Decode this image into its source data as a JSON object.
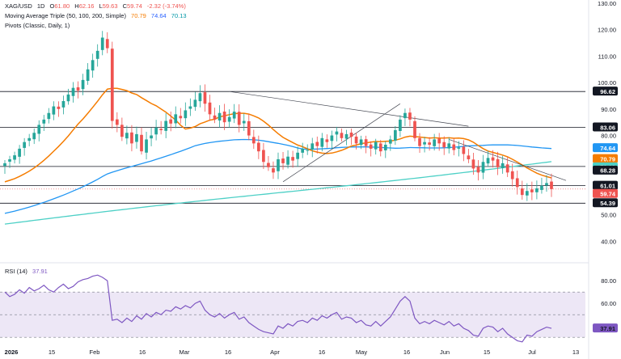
{
  "header": {
    "symbol": "XAG/USD",
    "interval": "1D",
    "ohlc": {
      "o_label": "O",
      "o": "61.80",
      "h_label": "H",
      "h": "62.16",
      "l_label": "L",
      "l": "59.63",
      "c_label": "C",
      "c": "59.74",
      "chg": "-2.32 (-3.74%)"
    },
    "ma_label": "Moving Average Triple (50, 100, 200, Simple)",
    "ma_values": [
      "70.79",
      "74.64",
      "70.13"
    ],
    "pivots_label": "Pivots (Classic, Daily, 1)",
    "rsi_label": "RSI (14)",
    "rsi_value": "37.91"
  },
  "colors": {
    "up": "#26a69a",
    "down": "#ef5350",
    "ma50": "#f57c00",
    "ma100": "#2196f3",
    "ma200": "#4dd0c6",
    "rsi_line": "#7e57c2",
    "rsi_band": "#ede7f6",
    "trendline": "#434651"
  },
  "chart_data": [
    {
      "type": "candlestick",
      "title": "",
      "x_tick_labels": [
        "2026",
        "15",
        "Feb",
        "16",
        "Mar",
        "16",
        "Apr",
        "16",
        "May",
        "16",
        "Jun",
        "15",
        "Jul",
        "13"
      ],
      "y_tick_labels": [
        "40.00",
        "50.00",
        "60.00",
        "70.00",
        "80.00",
        "90.00",
        "100.00",
        "110.00",
        "120.00",
        "130.00"
      ],
      "ylim": [
        34,
        130
      ],
      "grid": false,
      "candles_close": [
        69.5,
        71.0,
        72.5,
        75.0,
        77.5,
        79.0,
        81.0,
        84.0,
        86.0,
        88.5,
        91.0,
        90.0,
        93.0,
        95.5,
        98.0,
        97.0,
        101.0,
        105.0,
        108.5,
        112.0,
        117.0,
        113.0,
        85.5,
        84.0,
        79.5,
        81.0,
        77.0,
        80.5,
        74.0,
        78.5,
        80.0,
        83.0,
        82.0,
        85.5,
        84.5,
        88.0,
        86.5,
        89.5,
        91.0,
        93.5,
        96.0,
        92.0,
        88.0,
        86.0,
        88.5,
        85.0,
        87.0,
        89.0,
        84.0,
        85.5,
        80.0,
        77.0,
        74.0,
        70.0,
        68.0,
        66.0,
        71.0,
        69.5,
        72.0,
        70.5,
        73.5,
        75.0,
        74.5,
        77.0,
        76.0,
        79.0,
        77.5,
        80.0,
        81.5,
        79.0,
        80.5,
        79.5,
        77.0,
        78.5,
        76.0,
        75.0,
        77.5,
        74.0,
        76.5,
        78.5,
        82.0,
        86.0,
        88.5,
        86.0,
        79.0,
        76.0,
        77.5,
        76.5,
        78.5,
        77.0,
        75.5,
        77.0,
        74.5,
        75.5,
        73.0,
        71.0,
        67.5,
        66.0,
        70.0,
        71.5,
        70.5,
        68.0,
        69.5,
        66.0,
        63.5,
        60.5,
        57.5,
        59.0,
        58.5,
        60.0,
        61.0,
        62.0,
        59.74
      ],
      "price_tags": [
        "96.62",
        "83.06",
        "74.64",
        "70.79",
        "70.13",
        "68.28",
        "61.01",
        "59.74",
        "54.39"
      ],
      "pivot_levels": [
        96.62,
        83.06,
        68.28,
        61.01,
        54.39
      ],
      "series": [
        {
          "name": "MA 50",
          "last": 70.79
        },
        {
          "name": "MA 100",
          "last": 74.64
        },
        {
          "name": "MA 200",
          "last": 70.13
        }
      ]
    },
    {
      "type": "line",
      "title": "",
      "y_tick_labels": [
        "40.00",
        "60.00",
        "80.00"
      ],
      "ylim": [
        28,
        88
      ],
      "band": [
        30,
        70
      ],
      "values": [
        70,
        66,
        68,
        72,
        69,
        74,
        71,
        73,
        76,
        72,
        70,
        74,
        77,
        73,
        75,
        79,
        81,
        82,
        84,
        85,
        83,
        80,
        45,
        46,
        43,
        47,
        44,
        49,
        46,
        51,
        48,
        52,
        50,
        54,
        53,
        57,
        55,
        58,
        56,
        60,
        62,
        54,
        50,
        48,
        51,
        47,
        50,
        52,
        46,
        48,
        43,
        40,
        37,
        35,
        34,
        33,
        40,
        38,
        42,
        40,
        44,
        45,
        43,
        47,
        45,
        49,
        47,
        50,
        52,
        46,
        48,
        47,
        43,
        45,
        41,
        40,
        44,
        40,
        44,
        48,
        55,
        62,
        66,
        62,
        47,
        42,
        44,
        42,
        45,
        43,
        41,
        44,
        40,
        42,
        38,
        36,
        32,
        31,
        38,
        40,
        39,
        35,
        38,
        33,
        30,
        27,
        26,
        32,
        31,
        35,
        37,
        39,
        37.91
      ]
    }
  ]
}
